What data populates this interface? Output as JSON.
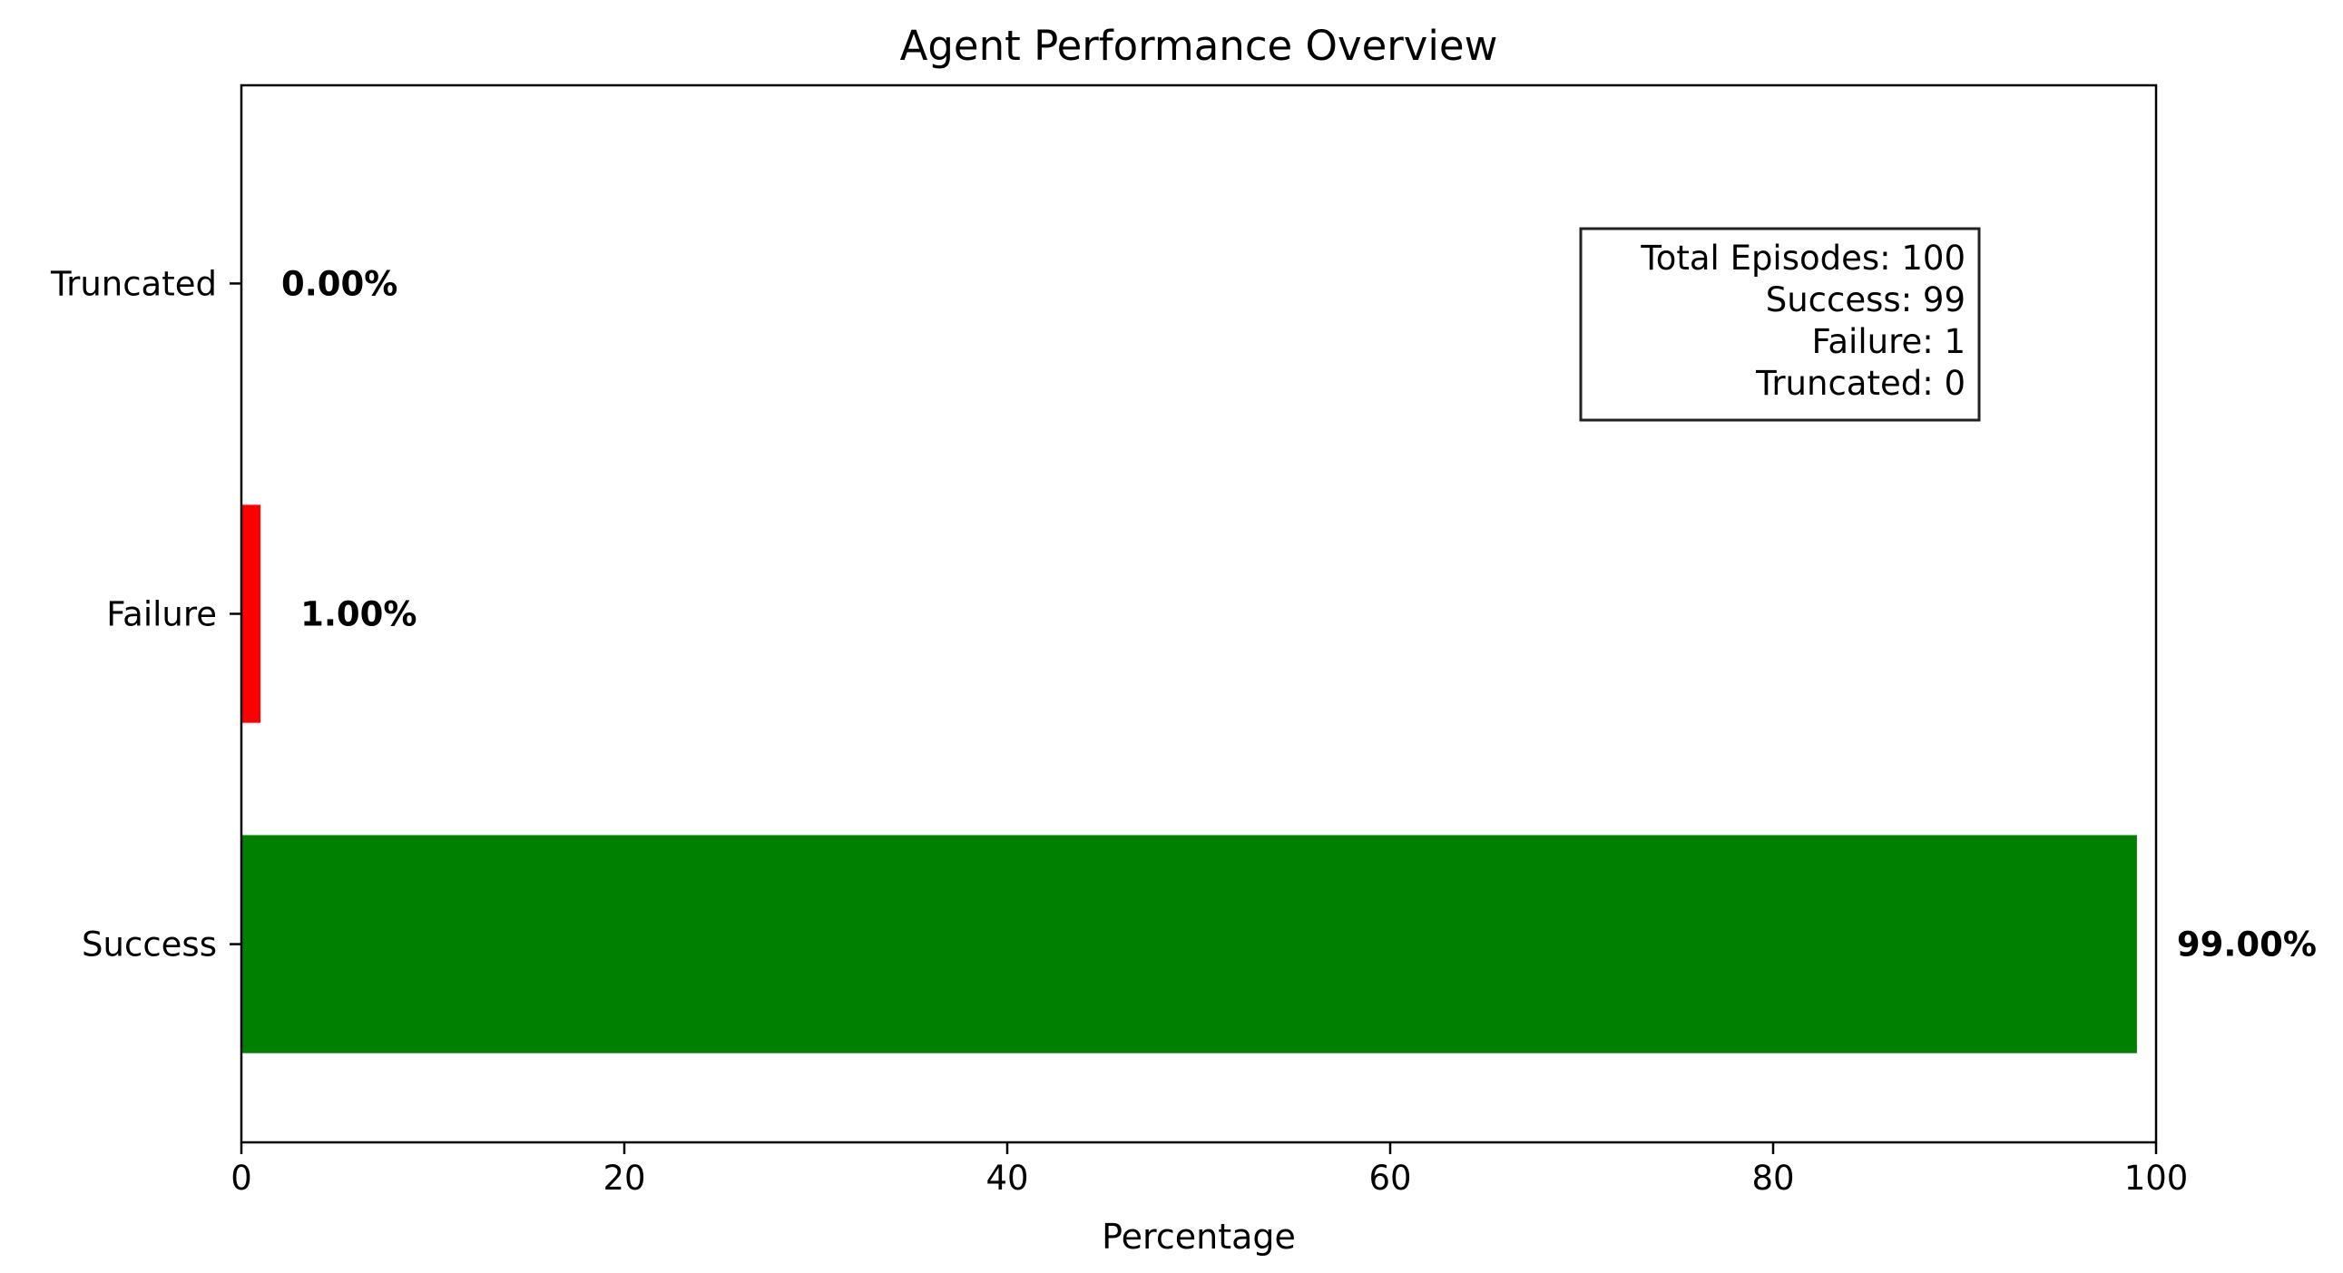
{
  "chart_data": {
    "type": "bar",
    "orientation": "horizontal",
    "title": "Agent Performance Overview",
    "xlabel": "Percentage",
    "ylabel": "",
    "xlim": [
      0,
      100
    ],
    "x_ticks": [
      0,
      20,
      40,
      60,
      80,
      100
    ],
    "categories": [
      "Success",
      "Failure",
      "Truncated"
    ],
    "values": [
      99.0,
      1.0,
      0.0
    ],
    "value_labels": [
      "99.00%",
      "1.00%",
      "0.00%"
    ],
    "colors": [
      "#008000",
      "#ff0000",
      "#0000ff"
    ],
    "grid": false,
    "legend": "none",
    "stats_box": {
      "placement": "top-right",
      "lines": [
        "Total Episodes: 100",
        "Success: 99",
        "Failure: 1",
        "Truncated: 0"
      ]
    }
  }
}
